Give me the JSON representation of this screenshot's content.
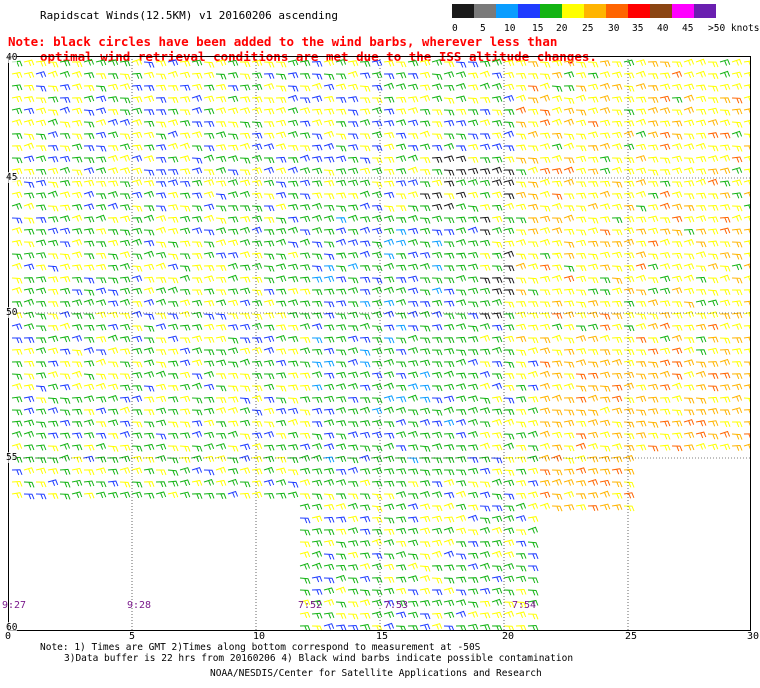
{
  "title": "Rapidscat Winds(12.5KM) v1 20160206 ascending",
  "note": {
    "line1": "Note: black circles have been added to the wind barbs, wherever less than",
    "line2": "optimal wind retrieval conditions are met due to the ISS altitude changes."
  },
  "colorbar": {
    "labels": [
      "0",
      "5",
      "10",
      "15",
      "20",
      "25",
      "30",
      "35",
      "40",
      "45",
      ">50 knots"
    ],
    "colors": [
      "#1a1a1a",
      "#7a7a7a",
      "#0a9dff",
      "#1f3cff",
      "#14b414",
      "#ffff00",
      "#ffb400",
      "#ff6400",
      "#ff0000",
      "#8b4513",
      "#ff00ff",
      "#6a1fb0"
    ]
  },
  "map": {
    "lat_labels": [
      "40",
      "45",
      "50",
      "55",
      "60"
    ],
    "lon_labels": [
      "0",
      "5",
      "10",
      "15",
      "20",
      "25",
      "30"
    ],
    "time_labels": [
      "9:27",
      "9:28",
      "7:52",
      "7:53",
      "7:54"
    ]
  },
  "footer": {
    "line1": "Note: 1) Times are GMT 2)Times along bottom correspond to measurement at -50S",
    "line2": "3)Data buffer is 22 hrs from 20160206 4) Black wind barbs indicate possible contamination",
    "credits": "NOAA/NESDIS/Center for Satellite Applications and Research"
  }
}
